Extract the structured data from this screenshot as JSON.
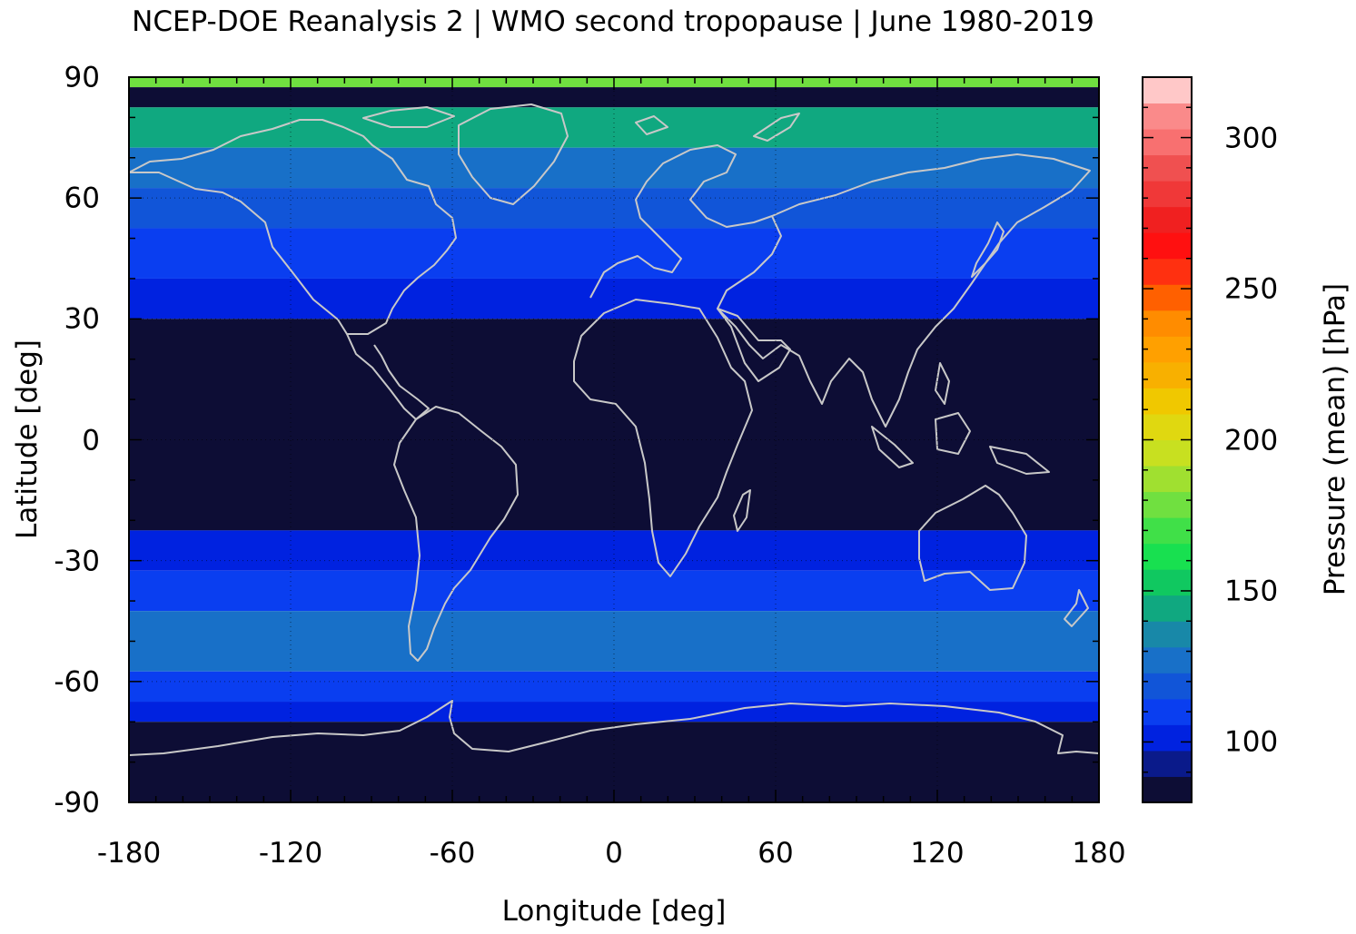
{
  "chart_data": {
    "type": "heatmap",
    "title": "NCEP-DOE Reanalysis 2 | WMO second tropopause | June 1980-2019",
    "xlabel": "Longitude [deg]",
    "ylabel": "Latitude [deg]",
    "colorbar_label": "Pressure (mean) [hPa]",
    "xlim": [
      -180,
      180
    ],
    "ylim": [
      -90,
      90
    ],
    "x_ticks": [
      -180,
      -120,
      -60,
      0,
      60,
      120,
      180
    ],
    "y_ticks": [
      90,
      60,
      30,
      0,
      -30,
      -60,
      -90
    ],
    "colorbar_range": [
      80,
      320
    ],
    "colorbar_ticks": [
      100,
      150,
      200,
      250,
      300
    ],
    "grid": "dotted",
    "colorbar_colors": [
      "#0d0d35",
      "#0a1a8a",
      "#0022e0",
      "#0a3ef0",
      "#1155d8",
      "#1870c8",
      "#1888a8",
      "#10a880",
      "#10c860",
      "#18e050",
      "#40e048",
      "#70e040",
      "#a0e030",
      "#c8e020",
      "#e0d810",
      "#f0c800",
      "#f8b000",
      "#ffa000",
      "#ff8c00",
      "#ff6000",
      "#ff3010",
      "#ff1010",
      "#f02020",
      "#f03838",
      "#f05050",
      "#f87070",
      "#fa8a8a",
      "#ffc8c8"
    ],
    "zonal_profile": [
      {
        "lat_from": 90,
        "lat_to": 87.5,
        "value": 175
      },
      {
        "lat_from": 87.5,
        "lat_to": 82.5,
        "value": 85
      },
      {
        "lat_from": 82.5,
        "lat_to": 72.5,
        "value": 145
      },
      {
        "lat_from": 72.5,
        "lat_to": 62.5,
        "value": 128
      },
      {
        "lat_from": 62.5,
        "lat_to": 52.5,
        "value": 115
      },
      {
        "lat_from": 52.5,
        "lat_to": 40,
        "value": 106
      },
      {
        "lat_from": 40,
        "lat_to": 30,
        "value": 100
      },
      {
        "lat_from": 30,
        "lat_to": -22.5,
        "value": 85
      },
      {
        "lat_from": -22.5,
        "lat_to": -32.5,
        "value": 103
      },
      {
        "lat_from": -32.5,
        "lat_to": -42.5,
        "value": 110
      },
      {
        "lat_from": -42.5,
        "lat_to": -57.5,
        "value": 125
      },
      {
        "lat_from": -57.5,
        "lat_to": -65,
        "value": 112
      },
      {
        "lat_from": -65,
        "lat_to": -70,
        "value": 100
      },
      {
        "lat_from": -70,
        "lat_to": -90,
        "value": 85
      }
    ]
  }
}
